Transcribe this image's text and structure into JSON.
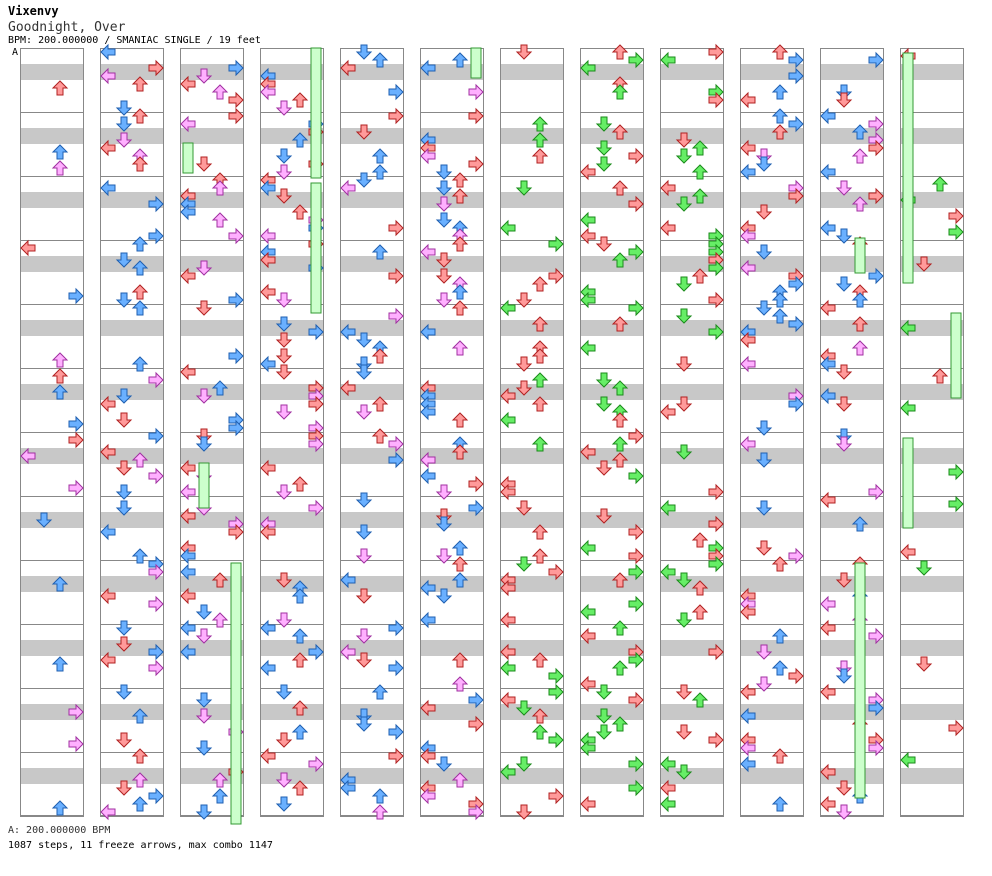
{
  "header": {
    "artist": "Vixenvy",
    "title": "Goodnight, Over",
    "bpm_line": "BPM: 200.000000 / SMANIAC SINGLE / 19 feet"
  },
  "section_marker": "A",
  "footer": {
    "bpm_label": "A: 200.000000 BPM",
    "stats": "1087 steps, 11 freeze arrows, max combo 1147"
  },
  "chart_data": {
    "type": "table",
    "description_visible": "step chart",
    "columns": 12,
    "lanes": [
      "left",
      "down",
      "up",
      "right"
    ],
    "total_steps": 1087,
    "freeze_arrows": 11,
    "max_combo": 1147,
    "bpm": 200.0,
    "difficulty": "SMANIAC",
    "feet": 19
  },
  "colors": {
    "quarter": "#ff9a9a",
    "quarter_stroke": "#b02020",
    "eighth": "#6ab0ff",
    "eighth_stroke": "#1f5fb0",
    "sixteenth": "#ffb0ff",
    "sixteenth_stroke": "#a030a0",
    "other": "#66ee66",
    "other_stroke": "#1a8a1a",
    "freeze": "#ccffcc",
    "freeze_stroke": "#339933",
    "band": "#c8c8c8"
  }
}
